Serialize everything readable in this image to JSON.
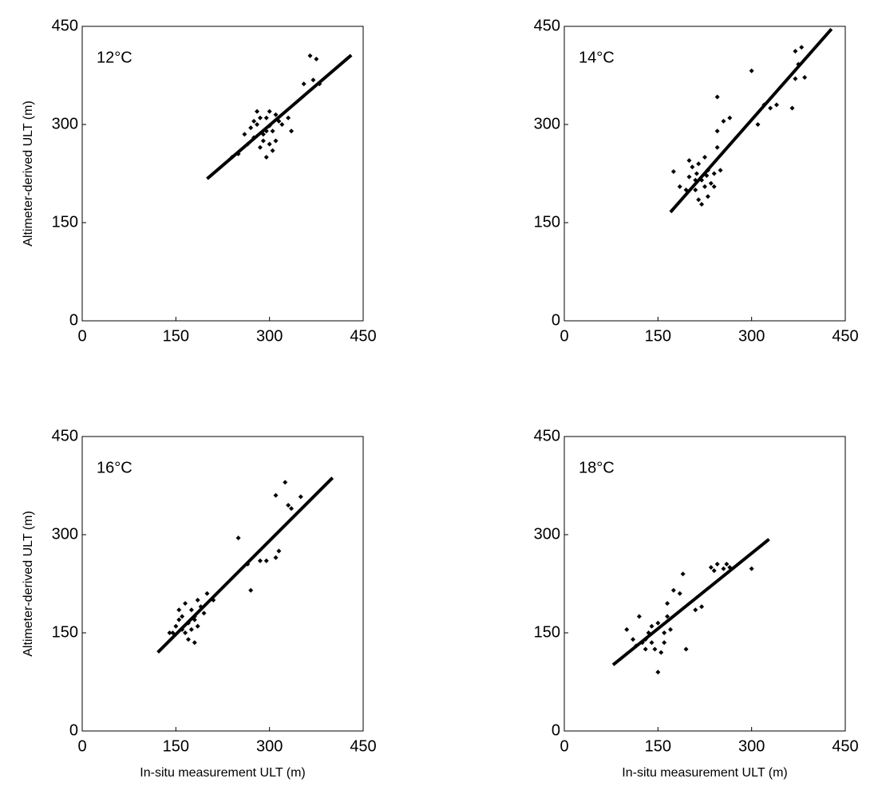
{
  "chart_data": [
    {
      "type": "scatter",
      "title": "12°C",
      "y_label": "Altimeter-derived ULT (m)",
      "xlim": [
        0,
        450
      ],
      "ylim": [
        0,
        450
      ],
      "xticks": [
        0,
        150,
        300,
        450
      ],
      "yticks": [
        0,
        150,
        300,
        450
      ],
      "series": [
        {
          "type": "scatter",
          "color": "#000000",
          "x": [
            300,
            290,
            280,
            295,
            305,
            275,
            310,
            285,
            300,
            270,
            265,
            295,
            320,
            260,
            300,
            315,
            285,
            290,
            305,
            280,
            250,
            330,
            335,
            355,
            365,
            375,
            370,
            380,
            240,
            310,
            295,
            275
          ],
          "y": [
            298,
            285,
            300,
            310,
            290,
            280,
            275,
            265,
            270,
            295,
            270,
            250,
            300,
            285,
            320,
            305,
            310,
            275,
            260,
            320,
            255,
            310,
            290,
            362,
            405,
            400,
            368,
            362,
            250,
            315,
            290,
            305
          ]
        },
        {
          "type": "line",
          "color": "#000000",
          "x": [
            200,
            431
          ],
          "y": [
            217,
            406
          ]
        }
      ]
    },
    {
      "type": "scatter",
      "title": "14°C",
      "xlim": [
        0,
        450
      ],
      "ylim": [
        0,
        450
      ],
      "xticks": [
        0,
        150,
        300,
        450
      ],
      "yticks": [
        0,
        150,
        300,
        450
      ],
      "series": [
        {
          "type": "scatter",
          "color": "#000000",
          "x": [
            300,
            245,
            255,
            265,
            320,
            330,
            340,
            310,
            365,
            370,
            375,
            370,
            385,
            380,
            245,
            245,
            220,
            210,
            230,
            215,
            225,
            200,
            235,
            205,
            240,
            230,
            215,
            195,
            225,
            250,
            210,
            220,
            185,
            175,
            200,
            240,
            228,
            212
          ],
          "y": [
            382,
            342,
            305,
            310,
            330,
            325,
            330,
            300,
            325,
            370,
            392,
            412,
            372,
            418,
            265,
            290,
            215,
            200,
            230,
            240,
            205,
            220,
            210,
            235,
            225,
            190,
            185,
            200,
            250,
            230,
            215,
            178,
            205,
            228,
            245,
            205,
            222,
            225
          ]
        },
        {
          "type": "line",
          "color": "#000000",
          "x": [
            170,
            428
          ],
          "y": [
            166,
            446
          ]
        }
      ]
    },
    {
      "type": "scatter",
      "title": "16°C",
      "x_label": "In-situ measurement ULT (m)",
      "y_label": "Altimeter-derived ULT (m)",
      "xlim": [
        0,
        450
      ],
      "ylim": [
        0,
        450
      ],
      "xticks": [
        0,
        150,
        300,
        450
      ],
      "yticks": [
        0,
        150,
        300,
        450
      ],
      "series": [
        {
          "type": "scatter",
          "color": "#000000",
          "x": [
            250,
            265,
            270,
            285,
            295,
            310,
            325,
            330,
            335,
            350,
            315,
            310,
            170,
            160,
            180,
            175,
            155,
            190,
            165,
            185,
            150,
            170,
            195,
            160,
            145,
            180,
            200,
            175,
            165,
            185,
            155,
            210,
            140,
            180
          ],
          "y": [
            295,
            255,
            215,
            260,
            260,
            360,
            380,
            345,
            340,
            358,
            275,
            265,
            165,
            175,
            170,
            155,
            185,
            190,
            150,
            200,
            160,
            140,
            180,
            155,
            150,
            135,
            210,
            185,
            195,
            160,
            170,
            200,
            150,
            175
          ]
        },
        {
          "type": "line",
          "color": "#000000",
          "x": [
            121,
            401
          ],
          "y": [
            120,
            387
          ]
        }
      ]
    },
    {
      "type": "scatter",
      "title": "18°C",
      "x_label": "In-situ measurement ULT (m)",
      "xlim": [
        0,
        450
      ],
      "ylim": [
        0,
        450
      ],
      "xticks": [
        0,
        150,
        300,
        450
      ],
      "yticks": [
        0,
        150,
        300,
        450
      ],
      "series": [
        {
          "type": "scatter",
          "color": "#000000",
          "x": [
            100,
            110,
            120,
            115,
            130,
            130,
            135,
            140,
            140,
            145,
            150,
            150,
            155,
            160,
            160,
            165,
            170,
            175,
            185,
            190,
            195,
            210,
            220,
            235,
            240,
            245,
            255,
            260,
            265,
            300,
            125,
            165
          ],
          "y": [
            155,
            140,
            175,
            130,
            125,
            140,
            150,
            160,
            135,
            125,
            90,
            165,
            120,
            135,
            150,
            195,
            155,
            215,
            210,
            240,
            125,
            185,
            190,
            250,
            245,
            255,
            248,
            255,
            250,
            248,
            135,
            175
          ]
        },
        {
          "type": "line",
          "color": "#000000",
          "x": [
            78,
            328
          ],
          "y": [
            101,
            293
          ]
        }
      ]
    }
  ]
}
